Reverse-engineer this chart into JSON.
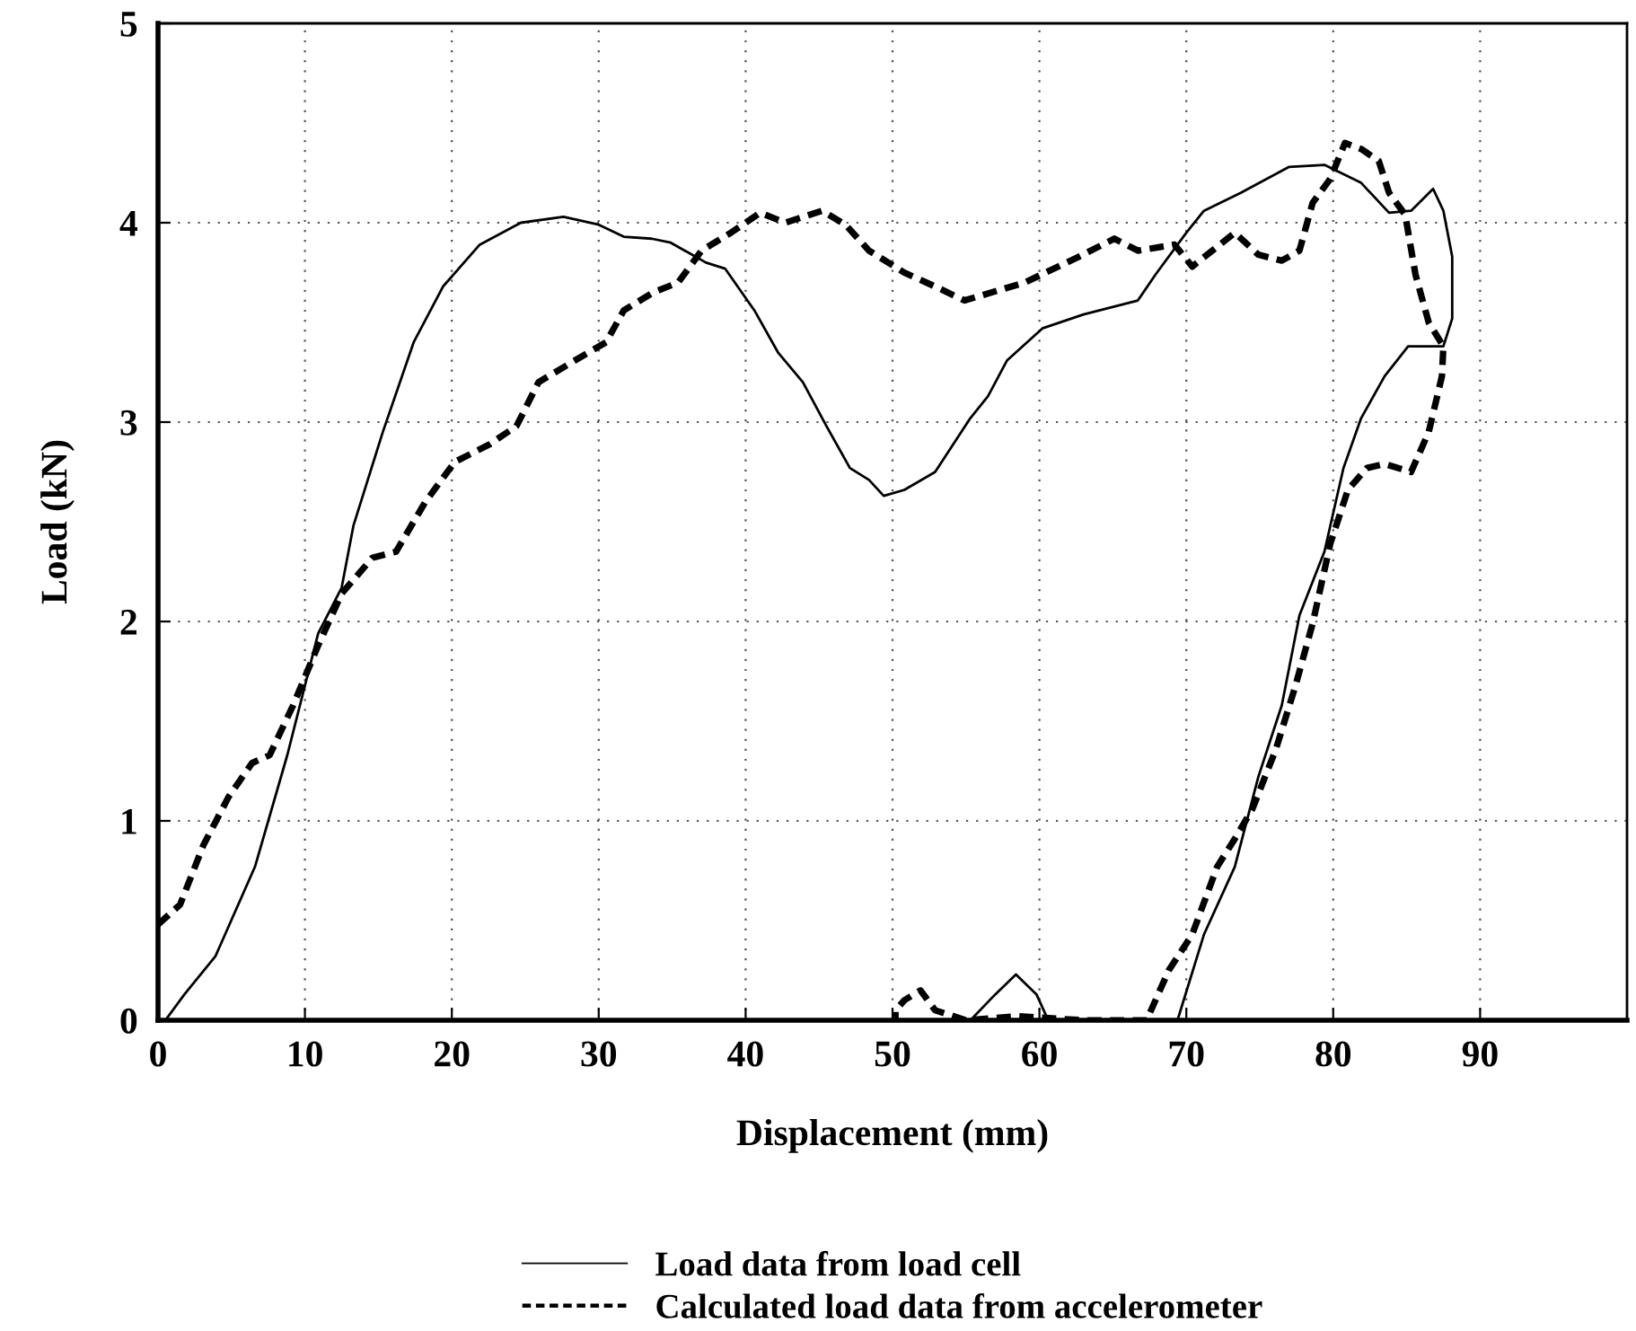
{
  "chart_data": {
    "type": "line",
    "xlabel": "Displacement (mm)",
    "ylabel": "Load (kN)",
    "xlim": [
      0,
      100
    ],
    "ylim": [
      0,
      5
    ],
    "xticks": [
      0,
      10,
      20,
      30,
      40,
      50,
      60,
      70,
      80,
      90
    ],
    "yticks": [
      0,
      1,
      2,
      3,
      4,
      5
    ],
    "grid": true,
    "legend": "bottom",
    "marker": "none",
    "series": [
      {
        "name": "Load data from load cell",
        "color": "#000000",
        "line_style": "solid",
        "x": [
          0.5,
          1.8,
          3.9,
          6.6,
          8.8,
          10.9,
          12.5,
          13.3,
          15.3,
          17.4,
          19.4,
          21.9,
          24.7,
          27.6,
          30,
          31.7,
          33.6,
          34.9,
          37.3,
          38.6,
          40.6,
          42.2,
          43.9,
          45.5,
          47.1,
          48.4,
          49.4,
          50.8,
          52.9,
          55.3,
          56.5,
          57.8,
          60.2,
          63,
          66.7,
          67.9,
          70,
          71.2,
          73.7,
          77,
          79.4,
          81.9,
          83.8,
          85.3,
          86.8,
          87.5,
          88.1,
          88.1,
          87.5,
          85.1,
          83.5,
          81.9,
          80.7,
          79.4,
          77.7,
          76.5,
          74.9,
          73.3,
          71.2,
          69.4,
          60.6,
          59.8,
          58.4,
          57,
          55.3,
          50
        ],
        "values": [
          0,
          0.13,
          0.32,
          0.77,
          1.33,
          1.94,
          2.17,
          2.48,
          2.95,
          3.4,
          3.68,
          3.89,
          4.0,
          4.03,
          3.99,
          3.93,
          3.92,
          3.9,
          3.8,
          3.77,
          3.56,
          3.35,
          3.2,
          2.98,
          2.77,
          2.71,
          2.63,
          2.66,
          2.75,
          3.02,
          3.13,
          3.31,
          3.47,
          3.54,
          3.61,
          3.74,
          3.95,
          4.06,
          4.15,
          4.28,
          4.29,
          4.2,
          4.05,
          4.06,
          4.17,
          4.06,
          3.83,
          3.52,
          3.38,
          3.38,
          3.23,
          3.02,
          2.77,
          2.35,
          2.03,
          1.58,
          1.22,
          0.77,
          0.43,
          0,
          0,
          0.13,
          0.23,
          0.13,
          0,
          0
        ]
      },
      {
        "name": "Calculated load data from accelerometer",
        "color": "#000000",
        "line_style": "dashed",
        "x": [
          0,
          1.5,
          3.1,
          4.8,
          6.4,
          7.6,
          9.2,
          10.9,
          12.5,
          14.6,
          16.2,
          18.2,
          20.2,
          22.6,
          24.4,
          25.9,
          28.4,
          30.5,
          31.7,
          33.7,
          35.4,
          37,
          39,
          41,
          42.7,
          45.2,
          46.8,
          48.4,
          50.8,
          52.9,
          54.9,
          59,
          62.7,
          65.1,
          66.7,
          69.2,
          70.4,
          73.3,
          74.9,
          76.5,
          77.7,
          78.6,
          79.8,
          80.8,
          81.9,
          83.1,
          83.8,
          84.9,
          85.6,
          86.5,
          87.5,
          87.4,
          86.5,
          85.3,
          83.5,
          82.3,
          81,
          79.8,
          78.6,
          77.4,
          76.1,
          74.5,
          73.3,
          72.1,
          70.4,
          68.8,
          67.3,
          63,
          58.5,
          55,
          52.9,
          51.9,
          50.8,
          50.2,
          50.2
        ],
        "values": [
          0.48,
          0.58,
          0.88,
          1.12,
          1.29,
          1.33,
          1.58,
          1.88,
          2.14,
          2.32,
          2.35,
          2.6,
          2.8,
          2.89,
          2.98,
          3.2,
          3.31,
          3.4,
          3.56,
          3.65,
          3.7,
          3.86,
          3.95,
          4.05,
          4.0,
          4.06,
          3.99,
          3.86,
          3.75,
          3.68,
          3.61,
          3.7,
          3.83,
          3.92,
          3.86,
          3.89,
          3.78,
          3.95,
          3.84,
          3.81,
          3.86,
          4.1,
          4.22,
          4.4,
          4.37,
          4.31,
          4.15,
          4.04,
          3.74,
          3.5,
          3.38,
          3.23,
          2.95,
          2.75,
          2.79,
          2.77,
          2.66,
          2.39,
          1.99,
          1.67,
          1.36,
          1.06,
          0.91,
          0.77,
          0.43,
          0.25,
          0,
          0,
          0.02,
          0,
          0.05,
          0.15,
          0.1,
          0.05,
          0
        ]
      }
    ]
  }
}
